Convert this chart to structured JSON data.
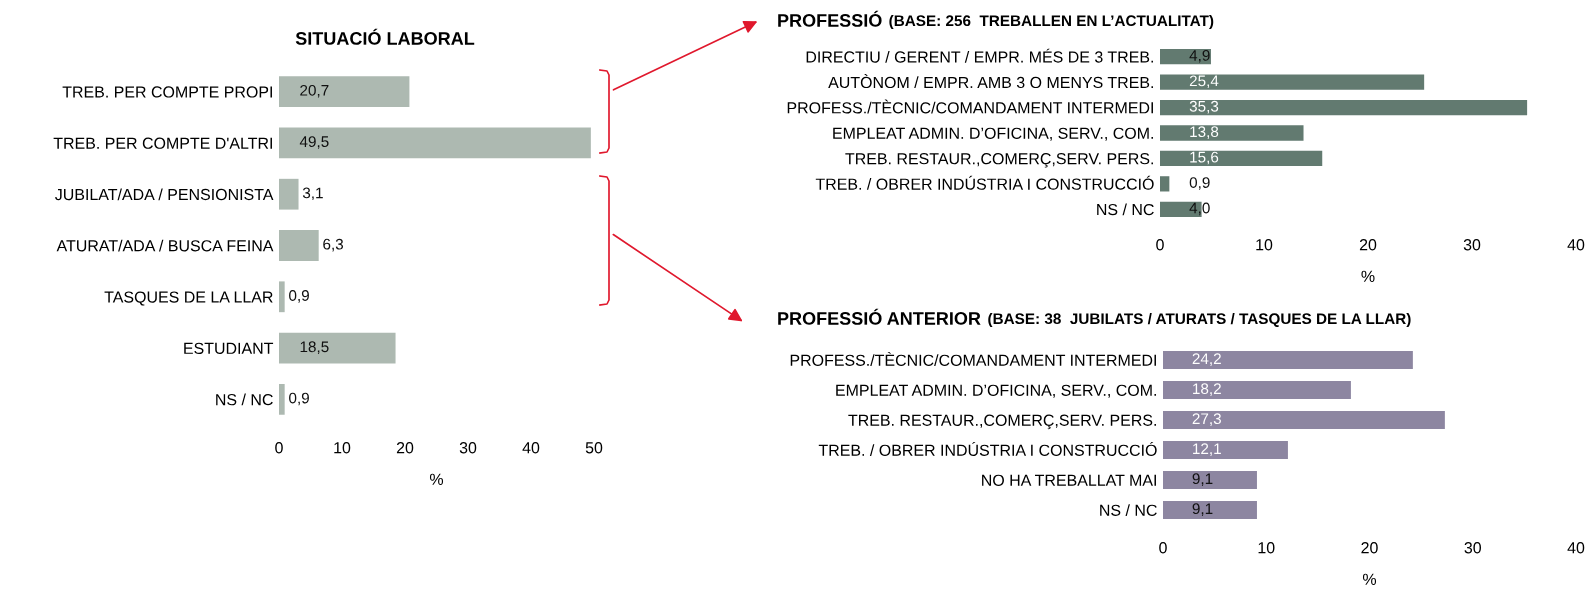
{
  "chart_data": [
    {
      "type": "bar",
      "orientation": "horizontal",
      "title": "SITUACIÓ LABORAL",
      "xlabel": "%",
      "categories": [
        "TREB. PER COMPTE PROPI",
        "TREB. PER COMPTE D'ALTRI",
        "JUBILAT/ADA / PENSIONISTA",
        "ATURAT/ADA / BUSCA FEINA",
        "TASQUES DE LA LLAR",
        "ESTUDIANT",
        "NS / NC"
      ],
      "series": [
        {
          "color": "#adb9b1",
          "values": [
            20.7,
            49.5,
            3.1,
            6.3,
            0.9,
            18.5,
            0.9
          ],
          "value_labels": [
            "20,7",
            "49,5",
            "3,1",
            "6,3",
            "0,9",
            "18,5",
            "0,9"
          ]
        }
      ],
      "xlim": [
        0,
        50
      ],
      "xticks": [
        0,
        10,
        20,
        30,
        40,
        50
      ],
      "grid": false,
      "legend": false
    },
    {
      "type": "bar",
      "orientation": "horizontal",
      "title": "PROFESSIÓ",
      "subtitle": "(BASE: 256  TREBALLEN EN L’ACTUALITAT)",
      "xlabel": "%",
      "categories": [
        "DIRECTIU / GERENT / EMPR. MÉS DE 3 TREB.",
        "AUTÒNOM / EMPR. AMB 3 O MENYS TREB.",
        "PROFESS./TÈCNIC/COMANDAMENT INTERMEDI",
        "EMPLEAT ADMIN. D’OFICINA, SERV., COM.",
        "TREB. RESTAUR.,COMERÇ,SERV. PERS.",
        "TREB. / OBRER INDÚSTRIA I CONSTRUCCIÓ",
        "NS / NC"
      ],
      "series": [
        {
          "color": "#627a70",
          "values": [
            4.9,
            25.4,
            35.3,
            13.8,
            15.6,
            0.9,
            4.0
          ],
          "value_labels": [
            "4,9",
            "25,4",
            "35,3",
            "13,8",
            "15,6",
            "0,9",
            "4,0"
          ]
        }
      ],
      "xlim": [
        0,
        40
      ],
      "xticks": [
        0,
        10,
        20,
        30,
        40
      ],
      "grid": false,
      "legend": false
    },
    {
      "type": "bar",
      "orientation": "horizontal",
      "title": "PROFESSIÓ ANTERIOR",
      "subtitle": "(BASE: 38  JUBILATS / ATURATS / TASQUES DE LA LLAR)",
      "xlabel": "%",
      "categories": [
        "PROFESS./TÈCNIC/COMANDAMENT INTERMEDI",
        "EMPLEAT ADMIN. D’OFICINA, SERV., COM.",
        "TREB. RESTAUR.,COMERÇ,SERV. PERS.",
        "TREB. / OBRER INDÚSTRIA I CONSTRUCCIÓ",
        "NO HA TREBALLAT MAI",
        "NS / NC"
      ],
      "series": [
        {
          "color": "#8d86a1",
          "values": [
            24.2,
            18.2,
            27.3,
            12.1,
            9.1,
            9.1
          ],
          "value_labels": [
            "24,2",
            "18,2",
            "27,3",
            "12,1",
            "9,1",
            "9,1"
          ]
        }
      ],
      "xlim": [
        0,
        40
      ],
      "xticks": [
        0,
        10,
        20,
        30,
        40
      ],
      "grid": false,
      "legend": false
    }
  ]
}
